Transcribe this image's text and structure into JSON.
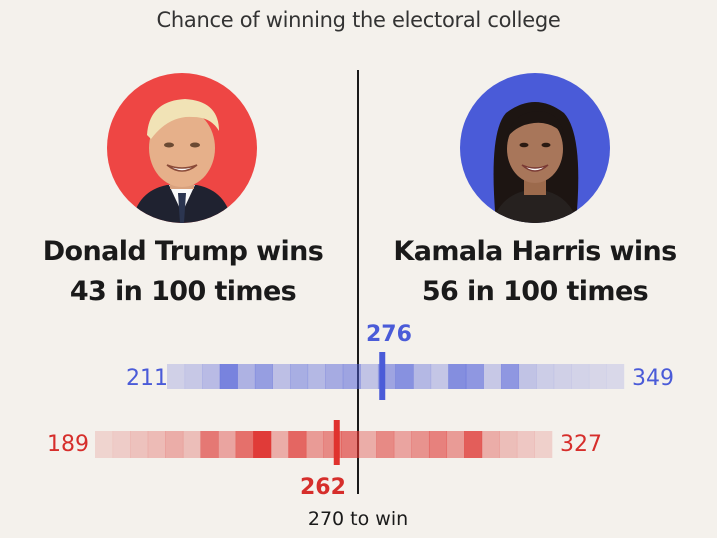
{
  "title": "Chance of winning the electoral college",
  "win_threshold_label": "270 to win",
  "colors": {
    "republican": "#ee4644",
    "democrat": "#4a5bd8",
    "background": "#f4f1ec"
  },
  "candidates": {
    "left": {
      "name": "Donald Trump wins",
      "odds": "43 in 100 times",
      "party_color": "red"
    },
    "right": {
      "name": "Kamala Harris wins",
      "odds": "56 in 100 times",
      "party_color": "blue"
    }
  },
  "chart_data": {
    "type": "heatmap",
    "title": "Chance of winning the electoral college",
    "threshold": 270,
    "series": [
      {
        "name": "Kamala Harris",
        "min": 211,
        "max": 349,
        "median": 276,
        "min_label": "211",
        "max_label": "349",
        "median_label": "276",
        "intensity": [
          0.12,
          0.18,
          0.28,
          0.7,
          0.35,
          0.5,
          0.25,
          0.38,
          0.3,
          0.4,
          0.45,
          0.22,
          0.45,
          0.6,
          0.3,
          0.2,
          0.62,
          0.55,
          0.18,
          0.55,
          0.22,
          0.15,
          0.12,
          0.1,
          0.08,
          0.06
        ]
      },
      {
        "name": "Donald Trump",
        "min": 189,
        "max": 327,
        "median": 262,
        "min_label": "189",
        "max_label": "327",
        "median_label": "262",
        "intensity": [
          0.08,
          0.12,
          0.18,
          0.22,
          0.3,
          0.2,
          0.6,
          0.35,
          0.65,
          0.95,
          0.3,
          0.7,
          0.4,
          0.5,
          0.6,
          0.3,
          0.5,
          0.35,
          0.45,
          0.55,
          0.4,
          0.75,
          0.3,
          0.2,
          0.15,
          0.1
        ]
      }
    ]
  }
}
